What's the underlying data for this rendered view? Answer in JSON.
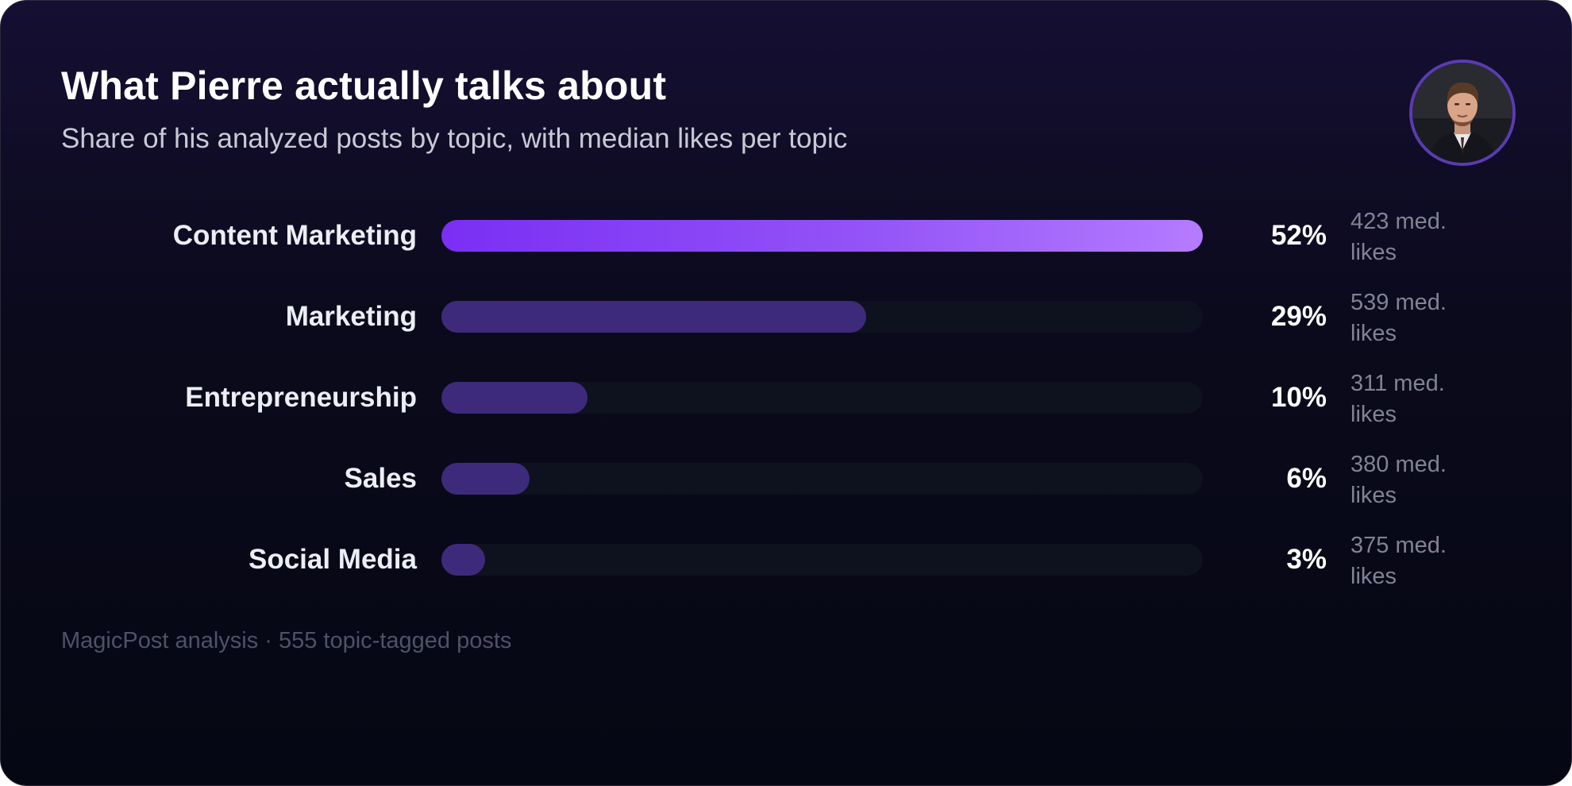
{
  "title": "What Pierre actually talks about",
  "subtitle": "Share of his analyzed posts by topic, with median likes per topic",
  "footer": "MagicPost analysis · 555 topic-tagged posts",
  "avatar": {
    "icon": "profile-photo"
  },
  "colors": {
    "background_top": "#150f33",
    "background_bottom": "#050713",
    "bar_top_gradient_start": "#7a2ff3",
    "bar_top_gradient_end": "#b57bff",
    "bar_fill": "#3e2a7a",
    "bar_track": "#0e111e",
    "avatar_ring": "#5b3bb2"
  },
  "chart_data": {
    "type": "bar",
    "orientation": "horizontal",
    "max_value": 52,
    "categories": [
      "Content Marketing",
      "Marketing",
      "Entrepreneurship",
      "Sales",
      "Social Media"
    ],
    "values": [
      52,
      29,
      10,
      6,
      3
    ],
    "value_labels": [
      "52%",
      "29%",
      "10%",
      "6%",
      "3%"
    ],
    "median_likes_labels": [
      "423 med. likes",
      "539 med. likes",
      "311 med. likes",
      "380 med. likes",
      "375 med. likes"
    ]
  }
}
